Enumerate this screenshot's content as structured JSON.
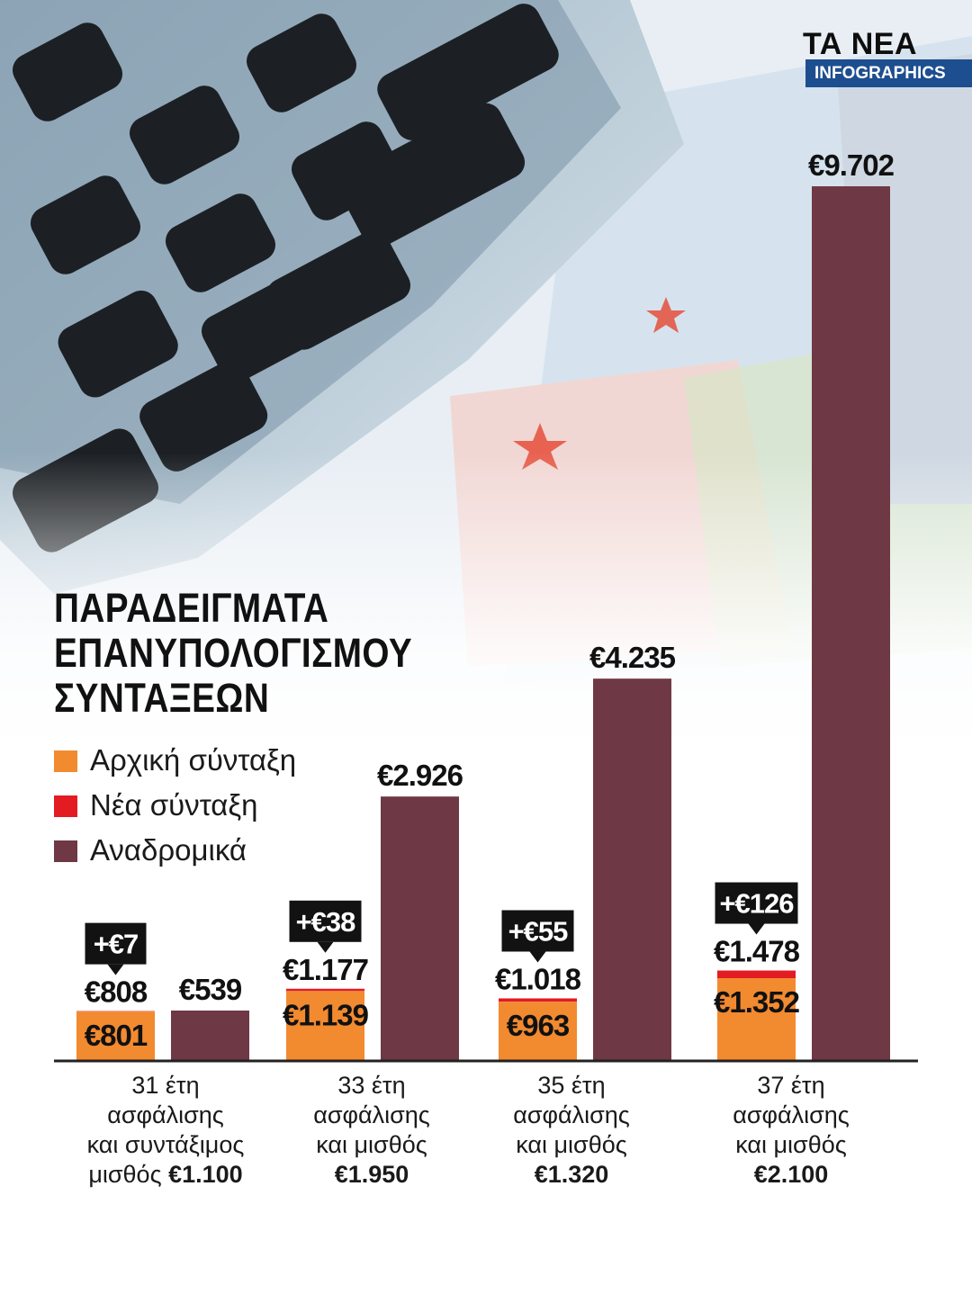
{
  "brand": {
    "name": "ΤΑ ΝΕΑ",
    "section": "INFOGRAPHICS"
  },
  "title": [
    "ΠΑΡΑΔΕΙΓΜΑΤΑ",
    "ΕΠΑΝΥΠΟΛΟΓΙΣΜΟΥ",
    "ΣΥΝΤΑΞΕΩΝ"
  ],
  "colors": {
    "initial": "#f28a30",
    "new": "#e31b23",
    "arrears": "#6f3845",
    "axis": "#222222",
    "brand": "#1d4e8f"
  },
  "legend": [
    {
      "label": "Αρχική σύνταξη",
      "color": "#f28a30"
    },
    {
      "label": "Νέα σύνταξη",
      "color": "#e31b23"
    },
    {
      "label": "Αναδρομικά",
      "color": "#6f3845"
    }
  ],
  "chart_data": {
    "type": "bar",
    "categories": [
      {
        "line1": "31 έτη",
        "line2": "ασφάλισης",
        "line3": "και συντάξιμος",
        "line4_prefix": "μισθός ",
        "line4_amount": "€1.100"
      },
      {
        "line1": "33 έτη",
        "line2": "ασφάλισης",
        "line3": "και μισθός",
        "line4_prefix": "",
        "line4_amount": "€1.950"
      },
      {
        "line1": "35 έτη",
        "line2": "ασφάλισης",
        "line3": "και μισθός",
        "line4_prefix": "",
        "line4_amount": "€1.320"
      },
      {
        "line1": "37 έτη",
        "line2": "ασφάλισης",
        "line3": "και μισθός",
        "line4_prefix": "",
        "line4_amount": "€2.100"
      }
    ],
    "series": [
      {
        "name": "Αρχική σύνταξη",
        "values": [
          801,
          1139,
          963,
          1352
        ],
        "labels": [
          "€801",
          "€1.139",
          "€963",
          "€1.352"
        ]
      },
      {
        "name": "Νέα σύνταξη",
        "values": [
          808,
          1177,
          1018,
          1478
        ],
        "labels": [
          "€808",
          "€1.177",
          "€1.018",
          "€1.478"
        ]
      },
      {
        "name": "Αναδρομικά",
        "values": [
          539,
          2926,
          4235,
          9702
        ],
        "labels": [
          "€539",
          "€2.926",
          "€4.235",
          "€9.702"
        ]
      }
    ],
    "increase_labels": [
      "+€7",
      "+€38",
      "+€55",
      "+€126"
    ],
    "ylim": [
      0,
      9702
    ]
  }
}
